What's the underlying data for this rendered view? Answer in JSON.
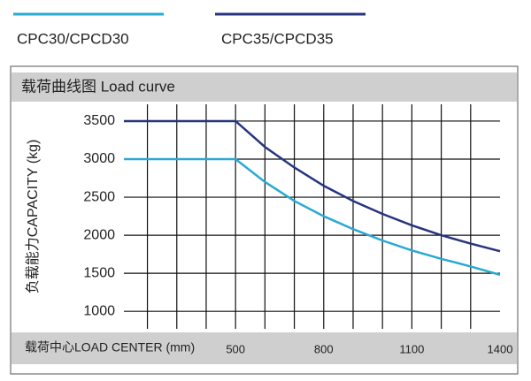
{
  "chart_data": {
    "type": "line",
    "title": "载荷曲线图 Load curve",
    "x_label": "载荷中心LOAD CENTER (mm)",
    "y_label": "负载能力CAPACITY (kg)",
    "x": [
      120,
      500,
      600,
      700,
      800,
      900,
      1000,
      1100,
      1200,
      1300,
      1400
    ],
    "series": [
      {
        "name": "CPC30/CPCD30",
        "color": "#2aa9d2",
        "values": [
          3000,
          3000,
          2700,
          2450,
          2250,
          2080,
          1930,
          1800,
          1690,
          1590,
          1480
        ]
      },
      {
        "name": "CPC35/CPCD35",
        "color": "#27347f",
        "values": [
          3500,
          3500,
          3160,
          2890,
          2650,
          2450,
          2280,
          2130,
          2000,
          1890,
          1790
        ]
      }
    ],
    "xlim": [
      120,
      1400
    ],
    "ylim": [
      770,
      3720
    ],
    "xticks": [
      500,
      800,
      1100,
      1400
    ],
    "xgrid": [
      200,
      300,
      400,
      500,
      600,
      700,
      800,
      900,
      1000,
      1100,
      1200,
      1300
    ],
    "yticks": [
      1000,
      1500,
      2000,
      2500,
      3000,
      3500
    ],
    "grid": true
  }
}
